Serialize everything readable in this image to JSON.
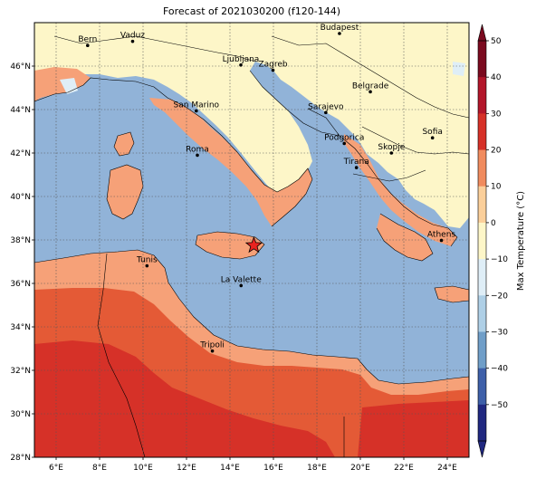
{
  "title": "Forecast of 2021030200 (f120-144)",
  "map": {
    "lon_range": [
      5,
      25
    ],
    "lat_range": [
      28,
      48
    ],
    "x_ticks": [
      "6°E",
      "8°E",
      "10°E",
      "12°E",
      "14°E",
      "16°E",
      "18°E",
      "20°E",
      "22°E",
      "24°E"
    ],
    "x_tick_values": [
      6,
      8,
      10,
      12,
      14,
      16,
      18,
      20,
      22,
      24
    ],
    "y_ticks": [
      "28°N",
      "30°N",
      "32°N",
      "34°N",
      "36°N",
      "38°N",
      "40°N",
      "42°N",
      "44°N",
      "46°N"
    ],
    "y_tick_values": [
      28,
      30,
      32,
      34,
      36,
      38,
      40,
      42,
      44,
      46
    ],
    "grid": true,
    "grid_style": "dotted",
    "sea_color": "#91b3d8",
    "colors": {
      "level_0_10": "#fdf6c8",
      "level_10_20": "#f6a178",
      "level_20_30": "#e45a36",
      "level_30_40": "#d63128",
      "level_minus10_0": "#dfeef7"
    },
    "cities": [
      {
        "name": "Bern",
        "lon": 7.45,
        "lat": 46.95
      },
      {
        "name": "Vaduz",
        "lon": 9.52,
        "lat": 47.14
      },
      {
        "name": "Budapest",
        "lon": 19.04,
        "lat": 47.5
      },
      {
        "name": "Ljubljana",
        "lon": 14.5,
        "lat": 46.05
      },
      {
        "name": "Zagreb",
        "lon": 15.98,
        "lat": 45.81
      },
      {
        "name": "Belgrade",
        "lon": 20.46,
        "lat": 44.82
      },
      {
        "name": "San Marino",
        "lon": 12.45,
        "lat": 43.94
      },
      {
        "name": "Sarajevo",
        "lon": 18.41,
        "lat": 43.86
      },
      {
        "name": "Sofia",
        "lon": 23.32,
        "lat": 42.7
      },
      {
        "name": "Podgorica",
        "lon": 19.26,
        "lat": 42.44
      },
      {
        "name": "Skopje",
        "lon": 21.43,
        "lat": 42.0
      },
      {
        "name": "Roma",
        "lon": 12.5,
        "lat": 41.9
      },
      {
        "name": "Tirana",
        "lon": 19.82,
        "lat": 41.33
      },
      {
        "name": "Athens",
        "lon": 23.73,
        "lat": 37.98
      },
      {
        "name": "Tunis",
        "lon": 10.18,
        "lat": 36.81
      },
      {
        "name": "La Valette",
        "lon": 14.51,
        "lat": 35.9
      },
      {
        "name": "Tripoli",
        "lon": 13.19,
        "lat": 32.89
      }
    ],
    "marker": {
      "lon": 15.1,
      "lat": 37.75,
      "symbol": "star",
      "color": "#e8231f"
    }
  },
  "colorbar": {
    "label": "Max Temperature (°C)",
    "ticks": [
      "50",
      "40",
      "30",
      "20",
      "10",
      "0",
      "−10",
      "−20",
      "−30",
      "−40",
      "−50"
    ],
    "tick_values": [
      50,
      40,
      30,
      20,
      10,
      0,
      -10,
      -20,
      -30,
      -40,
      -50
    ],
    "colors": [
      "#7a0a1f",
      "#b2162a",
      "#d63128",
      "#f08b5e",
      "#fbcf9a",
      "#fdf6c8",
      "#dfeef7",
      "#aecfe6",
      "#6f9ec8",
      "#3e5fa8",
      "#202880"
    ]
  }
}
